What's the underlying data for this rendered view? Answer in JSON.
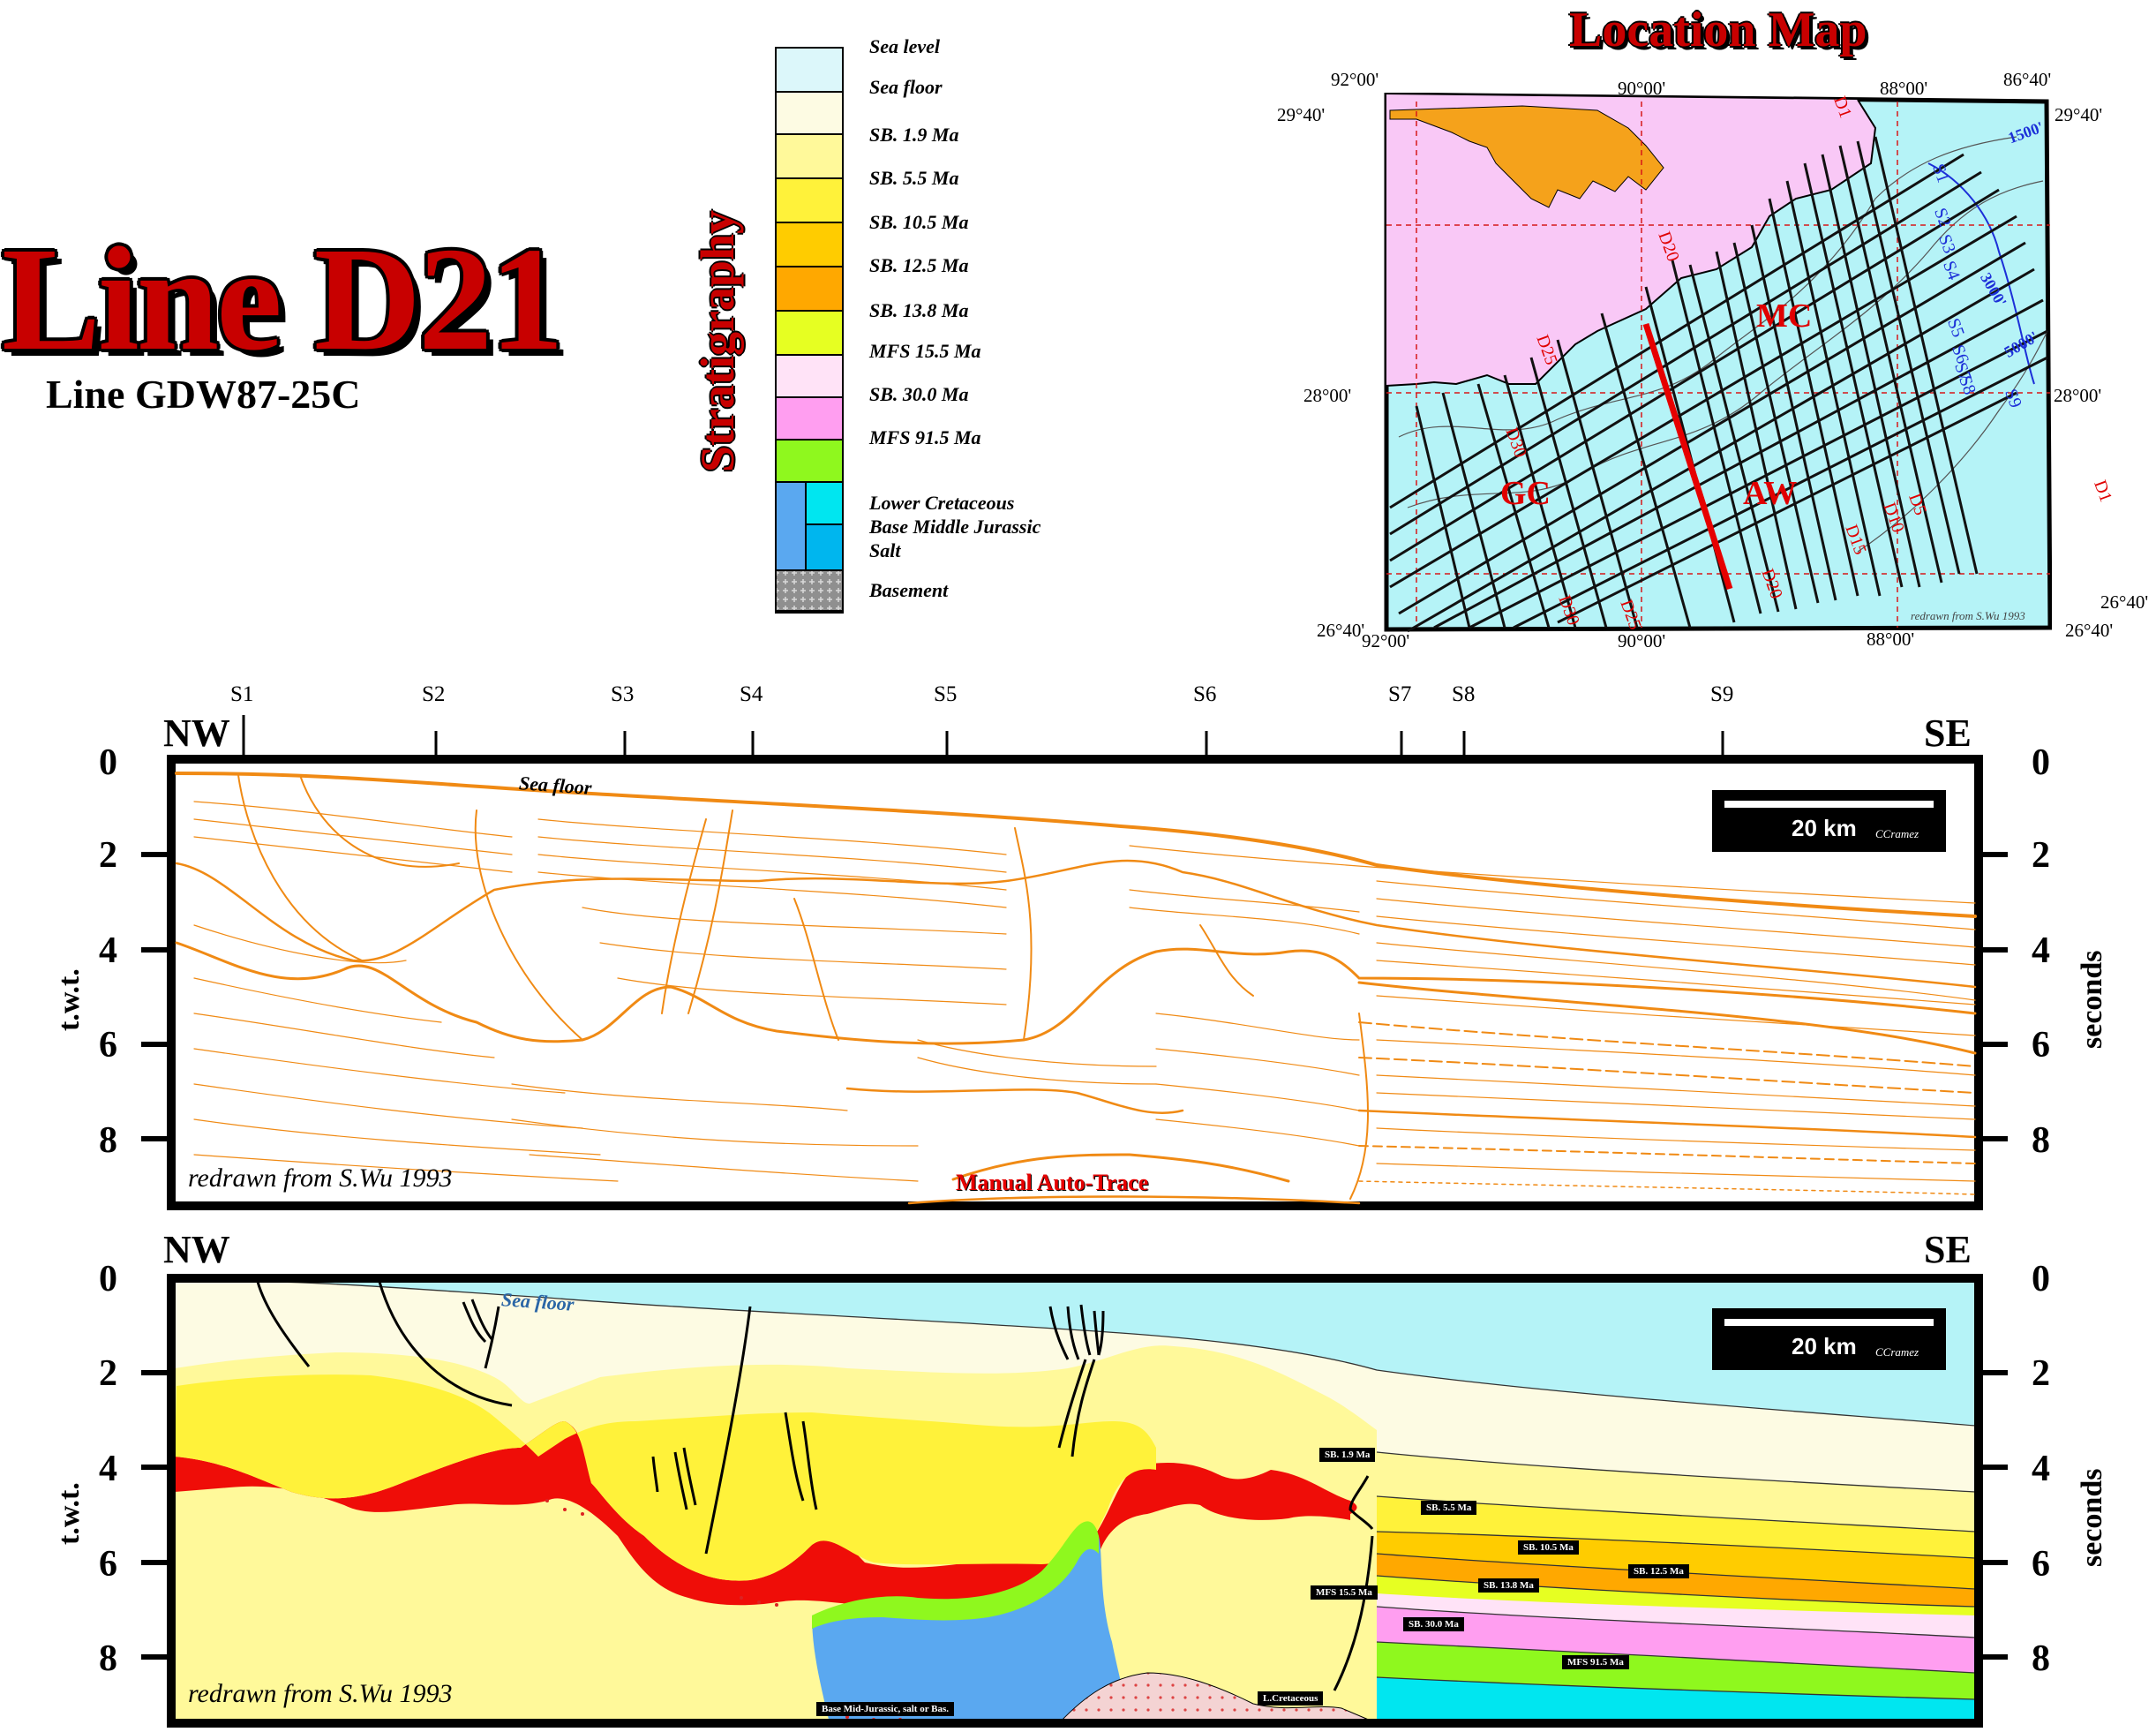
{
  "title": "Line D21",
  "subtitle": "Line GDW87-25C",
  "stratigraphy": {
    "title": "Stratigraphy",
    "items": [
      {
        "label": "Sea level",
        "color": "#dcf7fa"
      },
      {
        "label": "Sea floor",
        "color": "#fdfbe3"
      },
      {
        "label": "SB. 1.9 Ma",
        "color": "#fff99a"
      },
      {
        "label": "SB. 5.5 Ma",
        "color": "#fff23a"
      },
      {
        "label": "SB. 10.5 Ma",
        "color": "#ffcc00"
      },
      {
        "label": "SB. 12.5 Ma",
        "color": "#ffa800"
      },
      {
        "label": "SB. 13.8 Ma",
        "color": "#e6ff22"
      },
      {
        "label": "MFS 15.5 Ma",
        "color": "#ffe3f7"
      },
      {
        "label": "SB. 30.0 Ma",
        "color": "#ff9ef0"
      },
      {
        "label": "MFS 91.5 Ma",
        "color": "#8ff81e"
      },
      {
        "label": "Lower Cretaceous",
        "color": "#00e6f0"
      },
      {
        "label": "Base Middle Jurassic",
        "color": "#5aa8f0"
      },
      {
        "label": "Salt",
        "color": "#ee0000"
      },
      {
        "label": "Basement",
        "color": "#9b9b9b"
      }
    ]
  },
  "location_map": {
    "title": "Location Map",
    "coords": {
      "lon_92": "92°00'",
      "lon_90": "90°00'",
      "lon_88": "88°00'",
      "lon_8640": "86°40'",
      "lat_2940": "29°40'",
      "lat_28": "28°00'",
      "lat_2640": "26°40'"
    },
    "regions": {
      "mc": "MC",
      "gc": "GC",
      "aw": "AW"
    },
    "line_labels": {
      "d1": "D1",
      "d5": "D5",
      "d10": "D10",
      "d15": "D15",
      "d20": "D20",
      "d25": "D25",
      "d30": "D30"
    },
    "strike_labels": {
      "s1": "S1",
      "s2": "S2",
      "s3": "S3",
      "s4": "S4",
      "s5": "S5",
      "s6": "S6",
      "s7": "S7",
      "s8": "S8",
      "s9": "S9"
    },
    "contours": {
      "c1500": "1500'",
      "c3000": "3000'",
      "c5000": "5000'"
    },
    "credit": "redrawn from S.Wu 1993"
  },
  "section": {
    "shotpoints": [
      "S1",
      "S2",
      "S3",
      "S4",
      "S5",
      "S6",
      "S7",
      "S8",
      "S9"
    ],
    "nw": "NW",
    "se": "SE",
    "ticks": [
      "0",
      "2",
      "4",
      "6",
      "8"
    ],
    "left_axis": "t.w.t.",
    "right_axis": "seconds",
    "sea_floor": "Sea floor",
    "scale": "20 km",
    "scale_credit": "CCramez",
    "credit": "redrawn from S.Wu 1993",
    "autotrace": "Manual Auto-Trace"
  },
  "interpretation": {
    "horizons": {
      "sb19": "SB. 1.9 Ma",
      "sb55": "SB. 5.5 Ma",
      "sb105": "SB. 10.5 Ma",
      "sb125": "SB. 12.5 Ma",
      "mfs155": "MFS 15.5 Ma",
      "sb138": "SB. 13.8 Ma",
      "sb30": "SB. 30.0 Ma",
      "mfs915": "MFS 91.5 Ma",
      "lcret": "L.Cretaceous",
      "basejur": "Base Mid-Jurassic, salt or Bas."
    }
  }
}
